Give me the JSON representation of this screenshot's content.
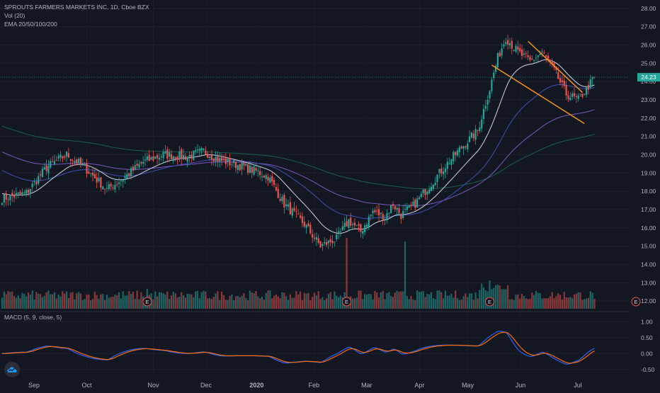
{
  "legend": {
    "title": "SPROUTS FARMERS MARKETS INC, 1D, Cboe BZX",
    "volume": "Vol (20)",
    "ema": "EMA 20/50/100/200"
  },
  "macd_label": "MACD (5, 9, close, 5)",
  "price_tag": "24.23",
  "earnings_marker": "E",
  "logo_icon": "tradingview-cloud-icon",
  "colors": {
    "up": "#26a69a",
    "down": "#ef5350",
    "macd": "#2962ff",
    "signal": "#ff6d00",
    "wedge": "#f7931a",
    "ema20": "#d1d4dc",
    "ema50": "#3f51b5",
    "ema100": "#7e57c2",
    "ema200": "#1b5e4a"
  },
  "chart_data": [
    {
      "type": "candlestick",
      "ylim": [
        11.5,
        28.3
      ],
      "y_ticks": [
        "28.00",
        "27.00",
        "26.00",
        "25.00",
        "24.00",
        "23.00",
        "22.00",
        "21.00",
        "20.00",
        "19.00",
        "18.00",
        "17.00",
        "16.00",
        "15.00",
        "14.00",
        "13.00",
        "12.00"
      ],
      "x_ticks": [
        "Sep",
        "Oct",
        "Nov",
        "Dec",
        "2020",
        "Feb",
        "Mar",
        "Apr",
        "May",
        "Jun",
        "Jul"
      ],
      "last_price": 24.23,
      "close_anchors": [
        [
          0,
          17.6
        ],
        [
          12,
          17.9
        ],
        [
          22,
          19.3
        ],
        [
          32,
          20.0
        ],
        [
          40,
          19.4
        ],
        [
          52,
          18.1
        ],
        [
          60,
          18.7
        ],
        [
          70,
          19.6
        ],
        [
          80,
          20.0
        ],
        [
          92,
          19.9
        ],
        [
          100,
          20.2
        ],
        [
          108,
          19.7
        ],
        [
          118,
          19.4
        ],
        [
          126,
          19.1
        ],
        [
          132,
          18.8
        ],
        [
          140,
          17.3
        ],
        [
          150,
          16.2
        ],
        [
          158,
          15.0
        ],
        [
          166,
          15.4
        ],
        [
          172,
          16.4
        ],
        [
          178,
          15.8
        ],
        [
          184,
          16.9
        ],
        [
          190,
          16.6
        ],
        [
          194,
          17.3
        ],
        [
          198,
          16.7
        ],
        [
          204,
          17.2
        ],
        [
          212,
          18.3
        ],
        [
          220,
          19.4
        ],
        [
          228,
          20.4
        ],
        [
          236,
          21.3
        ],
        [
          242,
          23.6
        ],
        [
          246,
          25.3
        ],
        [
          250,
          26.4
        ],
        [
          256,
          25.6
        ],
        [
          262,
          25.1
        ],
        [
          268,
          25.6
        ],
        [
          274,
          24.6
        ],
        [
          280,
          23.3
        ],
        [
          286,
          23.0
        ],
        [
          290,
          23.6
        ],
        [
          294,
          24.23
        ]
      ],
      "earnings_days": [
        72,
        171,
        242,
        314
      ]
    },
    {
      "type": "line",
      "title": "MACD (5, 9, close, 5)",
      "ylim": [
        -0.75,
        1.25
      ],
      "y_ticks": [
        "1.00",
        "0.50",
        "0.00",
        "-0.50"
      ]
    }
  ]
}
